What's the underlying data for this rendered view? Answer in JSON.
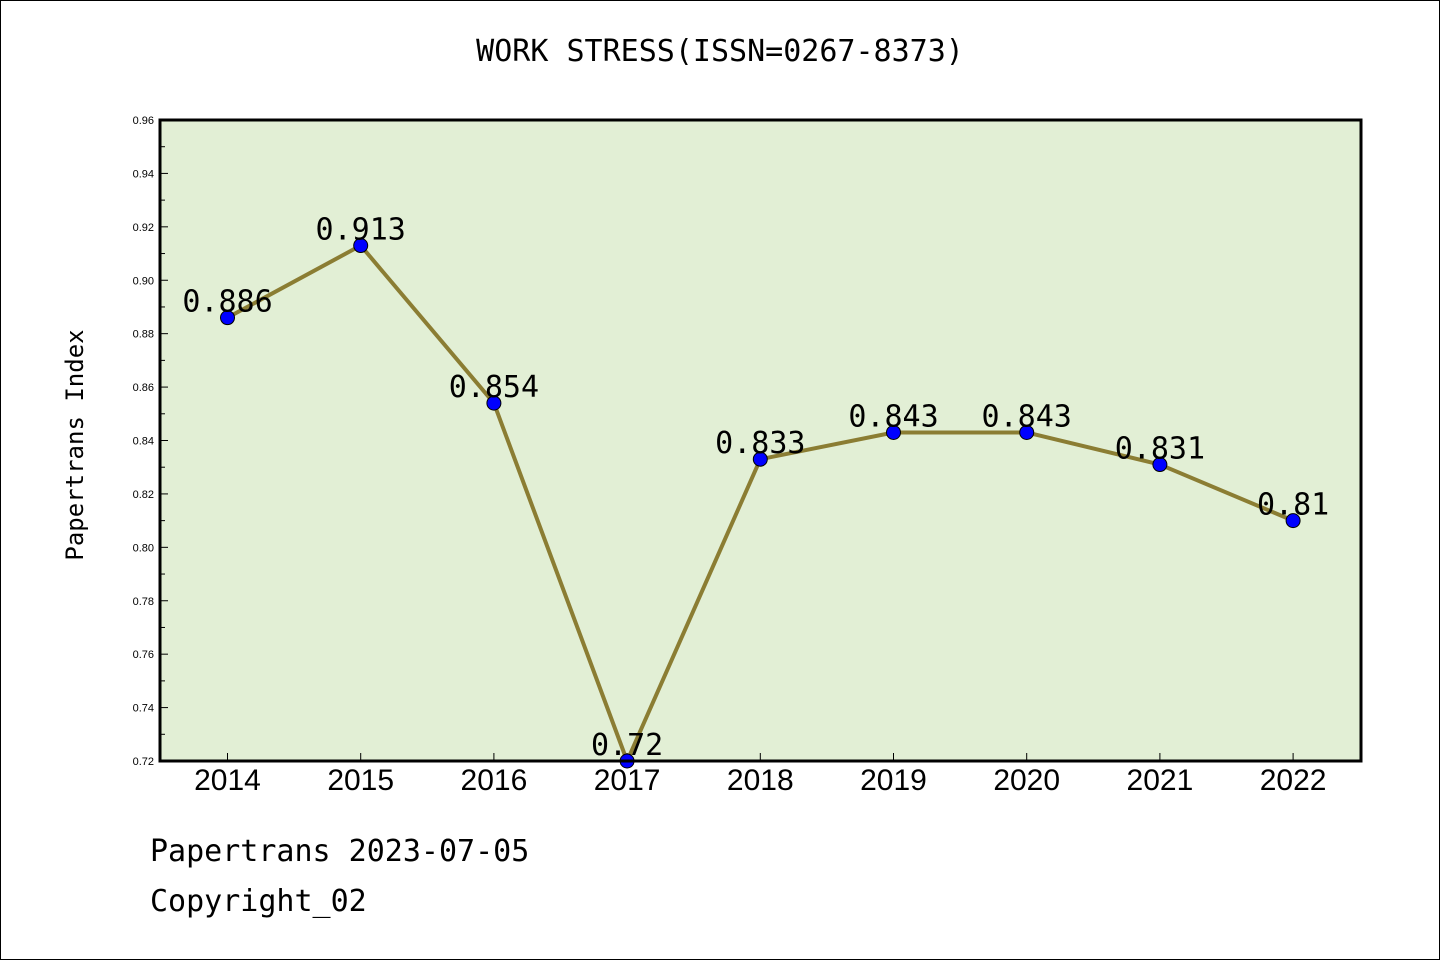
{
  "chart_data": {
    "type": "line",
    "title": "WORK STRESS(ISSN=0267-8373)",
    "ylabel": "Papertrans Index",
    "xlabel": "",
    "categories": [
      "2014",
      "2015",
      "2016",
      "2017",
      "2018",
      "2019",
      "2020",
      "2021",
      "2022"
    ],
    "series": [
      {
        "values": [
          0.886,
          0.913,
          0.854,
          0.72,
          0.833,
          0.843,
          0.843,
          0.831,
          0.81
        ]
      }
    ],
    "data_labels": [
      "0.886",
      "0.913",
      "0.854",
      "0.72",
      "0.833",
      "0.843",
      "0.843",
      "0.831",
      "0.81"
    ],
    "ylim": [
      0.72,
      0.96
    ],
    "yticks": [
      "0.72",
      "0.74",
      "0.76",
      "0.78",
      "0.80",
      "0.82",
      "0.84",
      "0.86",
      "0.88",
      "0.90",
      "0.92",
      "0.94",
      "0.96"
    ],
    "grid": false,
    "colors": {
      "plot_background": "#e2efd5",
      "line": "#8b7d33",
      "marker": "#0000ff"
    }
  },
  "footer": {
    "line1": "Papertrans 2023-07-05",
    "line2": "Copyright_02"
  }
}
